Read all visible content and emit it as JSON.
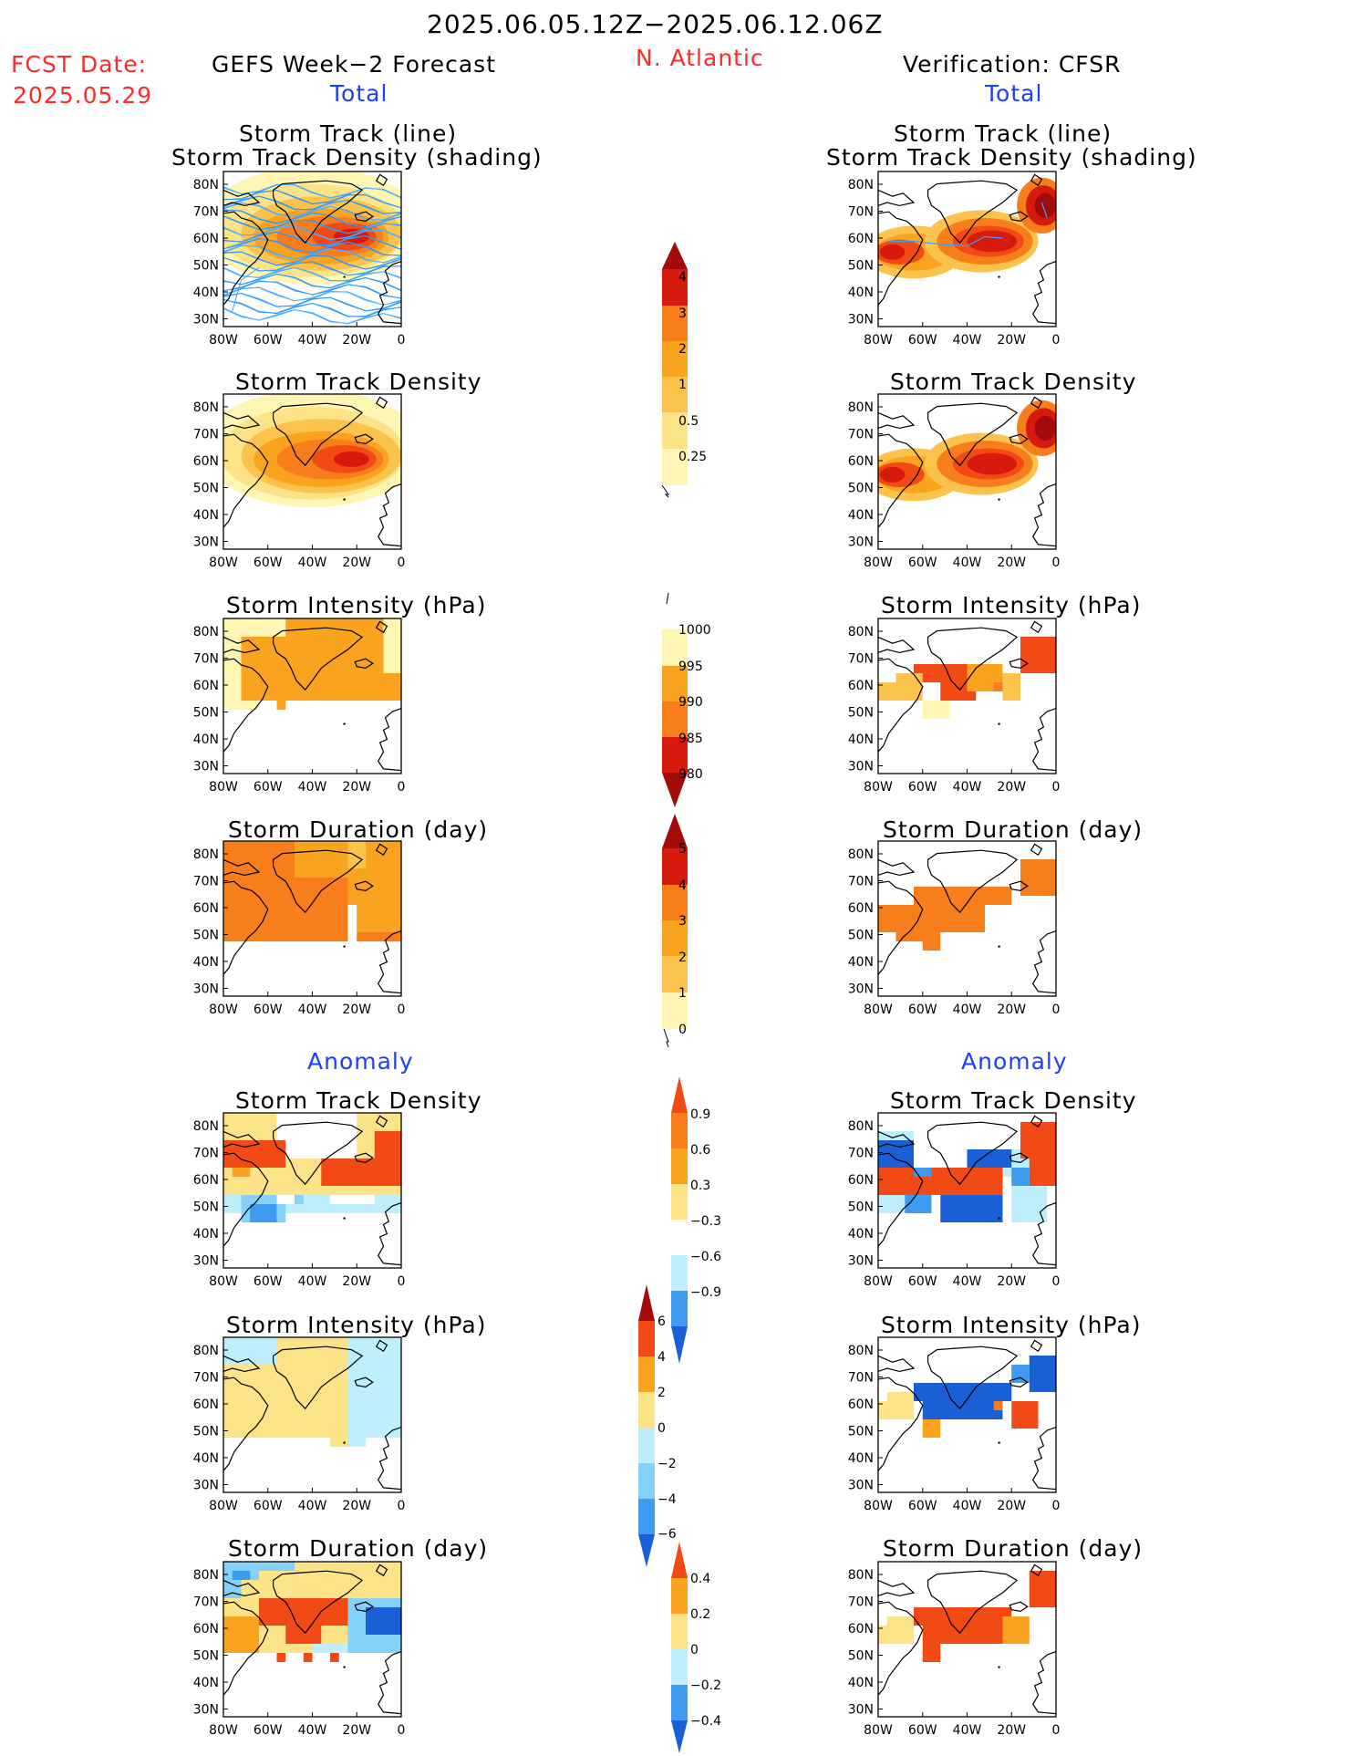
{
  "header": {
    "period": "2025.06.05.12Z−2025.06.12.06Z",
    "fcst_label": "FCST Date:",
    "fcst_date": "2025.05.29",
    "left_title": "GEFS Week−2 Forecast",
    "region": "N. Atlantic",
    "right_title": "Verification: CFSR",
    "total_left": "Total",
    "total_right": "Total",
    "anomaly_left": "Anomaly",
    "anomaly_right": "Anomaly"
  },
  "panel_titles": {
    "track1": "Storm Track (line)",
    "track2": "Storm Track Density (shading)",
    "density": "Storm Track Density",
    "intensity": "Storm Intensity (hPa)",
    "duration": "Storm Duration (day)"
  },
  "map_axes": {
    "lat_labels": [
      "80N",
      "70N",
      "60N",
      "50N",
      "40N",
      "30N"
    ],
    "lon_labels": [
      "80W",
      "60W",
      "40W",
      "20W",
      "0"
    ]
  },
  "colors": {
    "y1": "#fff6b4",
    "y2": "#fde387",
    "y3": "#fcc34c",
    "o1": "#faa31e",
    "o2": "#f77e1a",
    "o3": "#f24a14",
    "r1": "#d61a0e",
    "r2": "#a30a0a",
    "b1": "#bfeefc",
    "b2": "#86d1f8",
    "b3": "#3f9bf0",
    "b4": "#1a5fd6",
    "track_line": "#3aa0ff"
  },
  "chart_data": [
    {
      "type": "heatmap",
      "panel": "GEFS Storm Track (line) / Storm Track Density (shading)",
      "colorbar": [
        0.25,
        0.5,
        1,
        2,
        3,
        4
      ]
    },
    {
      "type": "heatmap",
      "panel": "CFSR Storm Track (line) / Storm Track Density (shading)",
      "colorbar": [
        0.25,
        0.5,
        1,
        2,
        3,
        4
      ]
    },
    {
      "type": "heatmap",
      "panel": "GEFS Storm Track Density",
      "colorbar": [
        0.25,
        0.5,
        1,
        2,
        3,
        4
      ]
    },
    {
      "type": "heatmap",
      "panel": "CFSR Storm Track Density",
      "colorbar": [
        0.25,
        0.5,
        1,
        2,
        3,
        4
      ]
    },
    {
      "type": "heatmap",
      "panel": "GEFS Storm Intensity (hPa)",
      "colorbar": [
        1000,
        995,
        990,
        985,
        980
      ]
    },
    {
      "type": "heatmap",
      "panel": "CFSR Storm Intensity (hPa)",
      "colorbar": [
        1000,
        995,
        990,
        985,
        980
      ]
    },
    {
      "type": "heatmap",
      "panel": "GEFS Storm Duration (day)",
      "colorbar": [
        0,
        1,
        2,
        3,
        4,
        5
      ]
    },
    {
      "type": "heatmap",
      "panel": "CFSR Storm Duration (day)",
      "colorbar": [
        0,
        1,
        2,
        3,
        4,
        5
      ]
    },
    {
      "type": "heatmap",
      "panel": "GEFS Anomaly Storm Track Density",
      "colorbar": [
        -0.9,
        -0.6,
        -0.3,
        0.3,
        0.6,
        0.9
      ]
    },
    {
      "type": "heatmap",
      "panel": "CFSR Anomaly Storm Track Density",
      "colorbar": [
        -0.9,
        -0.6,
        -0.3,
        0.3,
        0.6,
        0.9
      ]
    },
    {
      "type": "heatmap",
      "panel": "GEFS Anomaly Storm Intensity (hPa)",
      "colorbar": [
        -6,
        -4,
        -2,
        0,
        2,
        4,
        6
      ]
    },
    {
      "type": "heatmap",
      "panel": "CFSR Anomaly Storm Intensity (hPa)",
      "colorbar": [
        -6,
        -4,
        -2,
        0,
        2,
        4,
        6
      ]
    },
    {
      "type": "heatmap",
      "panel": "GEFS Anomaly Storm Duration (day)",
      "colorbar": [
        -0.4,
        -0.2,
        0,
        0.2,
        0.4
      ]
    },
    {
      "type": "heatmap",
      "panel": "CFSR Anomaly Storm Duration (day)",
      "colorbar": [
        -0.4,
        -0.2,
        0,
        0.2,
        0.4
      ]
    }
  ],
  "colorbars": {
    "density": [
      "4",
      "3",
      "2",
      "1",
      "0.5",
      "0.25"
    ],
    "intensity": [
      "1000",
      "995",
      "990",
      "985",
      "980"
    ],
    "duration": [
      "5",
      "4",
      "3",
      "2",
      "1",
      "0"
    ],
    "anom_density": [
      "0.9",
      "0.6",
      "0.3",
      "−0.3",
      "−0.6",
      "−0.9"
    ],
    "anom_intensity": [
      "6",
      "4",
      "2",
      "0",
      "−2",
      "−4",
      "−6"
    ],
    "anom_duration": [
      "0.4",
      "0.2",
      "0",
      "−0.2",
      "−0.4"
    ]
  }
}
